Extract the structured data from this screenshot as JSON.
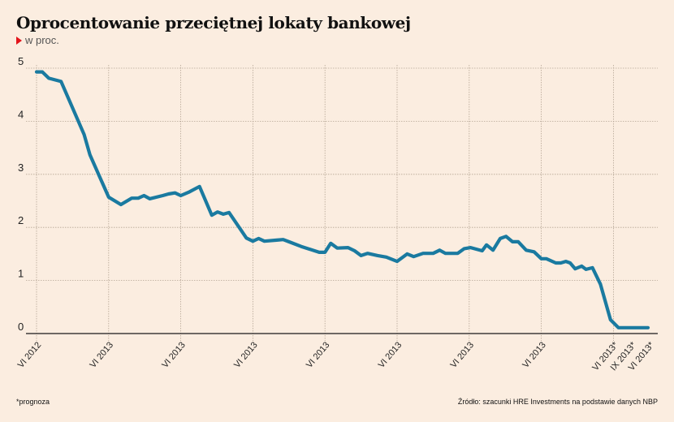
{
  "header": {
    "title": "Oprocentowanie przeciętnej lokaty bankowej",
    "subtitle": "w proc.",
    "subtitle_marker_color": "#e3141b"
  },
  "footer": {
    "footnote": "*prognoza",
    "source": "Źródło: szacunki HRE Investments na podstawie danych NBP"
  },
  "chart_data": {
    "type": "line",
    "title": "Oprocentowanie przeciętnej lokaty bankowej",
    "subtitle": "w proc.",
    "xlabel": "",
    "ylabel": "",
    "ylim": [
      0,
      5
    ],
    "yticks": [
      0,
      1,
      2,
      3,
      4,
      5
    ],
    "xtick_labels": [
      "VI 2012",
      "VI 2013",
      "VI 2013",
      "VI 2013",
      "VI 2013",
      "VI 2013",
      "VI 2013",
      "VI 2013",
      "VI 2013*",
      "IX 2013*",
      "VI 2013*"
    ],
    "xtick_positions": [
      0,
      1,
      2,
      3,
      4,
      5,
      6,
      7,
      8,
      8.25,
      8.5
    ],
    "grid": true,
    "line_color": "#1a7aa0",
    "series": [
      {
        "name": "Oprocentowanie",
        "x": [
          0,
          0.08,
          0.17,
          0.34,
          0.66,
          0.74,
          1.0,
          1.17,
          1.32,
          1.41,
          1.49,
          1.57,
          1.75,
          1.83,
          1.92,
          2.0,
          2.12,
          2.26,
          2.43,
          2.51,
          2.59,
          2.67,
          2.83,
          2.91,
          3.0,
          3.08,
          3.16,
          3.33,
          3.42,
          3.5,
          3.67,
          3.92,
          4.0,
          4.08,
          4.17,
          4.32,
          4.41,
          4.5,
          4.59,
          4.73,
          4.85,
          5.0,
          5.14,
          5.23,
          5.36,
          5.5,
          5.59,
          5.67,
          5.84,
          5.93,
          6.02,
          6.18,
          6.24,
          6.33,
          6.43,
          6.51,
          6.6,
          6.68,
          6.79,
          6.9,
          7.0,
          7.07,
          7.2,
          7.27,
          7.34,
          7.4,
          7.47,
          7.56,
          7.62,
          7.71,
          7.82,
          7.96,
          8.07,
          8.48
        ],
        "values": [
          4.93,
          4.93,
          4.81,
          4.75,
          3.75,
          3.37,
          2.57,
          2.43,
          2.55,
          2.55,
          2.6,
          2.54,
          2.6,
          2.63,
          2.65,
          2.6,
          2.67,
          2.77,
          2.23,
          2.29,
          2.25,
          2.28,
          1.96,
          1.8,
          1.74,
          1.79,
          1.74,
          1.76,
          1.77,
          1.73,
          1.64,
          1.53,
          1.53,
          1.7,
          1.61,
          1.62,
          1.56,
          1.47,
          1.51,
          1.47,
          1.44,
          1.36,
          1.5,
          1.45,
          1.51,
          1.51,
          1.57,
          1.51,
          1.51,
          1.6,
          1.62,
          1.56,
          1.67,
          1.57,
          1.79,
          1.83,
          1.73,
          1.73,
          1.57,
          1.54,
          1.41,
          1.41,
          1.33,
          1.33,
          1.36,
          1.33,
          1.22,
          1.27,
          1.21,
          1.24,
          0.93,
          0.26,
          0.11,
          0.11
        ]
      }
    ]
  }
}
